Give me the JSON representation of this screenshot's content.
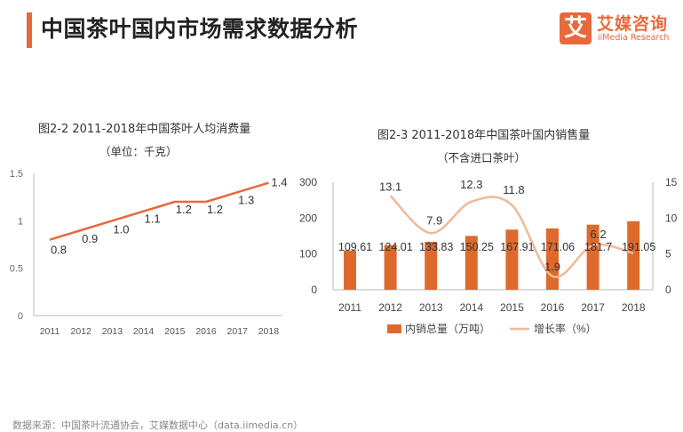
{
  "page": {
    "title": "中国茶叶国内市场需求数据分析",
    "source": "数据来源：中国茶叶流通协会，艾媒数据中心（data.iimedia.cn）"
  },
  "logo": {
    "mark": "艾",
    "cn": "艾媒咨询",
    "en": "iiMedia Research"
  },
  "colors": {
    "accent": "#e8693b",
    "bar": "#dd6a2c",
    "line_light": "#f2b896",
    "axis": "#bbbbbb"
  },
  "chart_data": [
    {
      "type": "line",
      "title": "图2-2 2011-2018年中国茶叶人均消费量",
      "subtitle": "（单位：千克）",
      "x": [
        "2011",
        "2012",
        "2013",
        "2014",
        "2015",
        "2016",
        "2017",
        "2018"
      ],
      "values": [
        0.8,
        0.9,
        1.0,
        1.1,
        1.2,
        1.2,
        1.3,
        1.4
      ],
      "labels": [
        "0.8",
        "0.9",
        "1.0",
        "1.1",
        "1.2",
        "1.2",
        "1.3",
        "1.4"
      ],
      "yticks": [
        "0",
        "0.5",
        "1",
        "1.5"
      ],
      "ylim": [
        0,
        1.5
      ]
    },
    {
      "type": "bar+line",
      "title": "图2-3 2011-2018年中国茶叶国内销售量",
      "subtitle": "（不含进口茶叶）",
      "categories": [
        "2011",
        "2012",
        "2013",
        "2014",
        "2015",
        "2016",
        "2017",
        "2018"
      ],
      "series": [
        {
          "name": "内销总量（万吨）",
          "type": "bar",
          "axis": "left",
          "values": [
            109.61,
            124.01,
            133.83,
            150.25,
            167.91,
            171.06,
            181.7,
            191.05
          ],
          "labels": [
            "109.61",
            "124.01",
            "133.83",
            "150.25",
            "167.91",
            "171.06",
            "181.7",
            "191.05"
          ]
        },
        {
          "name": "增长率（%）",
          "type": "line",
          "axis": "right",
          "values": [
            null,
            13.1,
            7.9,
            12.3,
            11.8,
            1.9,
            6.2,
            5.1
          ],
          "labels": [
            "",
            "13.1",
            "7.9",
            "12.3",
            "11.8",
            "1.9",
            "6.2",
            ""
          ]
        }
      ],
      "yticks_left": [
        "0",
        "100",
        "200",
        "300"
      ],
      "ylim_left": [
        0,
        300
      ],
      "yticks_right": [
        "0",
        "5",
        "10",
        "15"
      ],
      "ylim_right": [
        0,
        15
      ]
    }
  ]
}
